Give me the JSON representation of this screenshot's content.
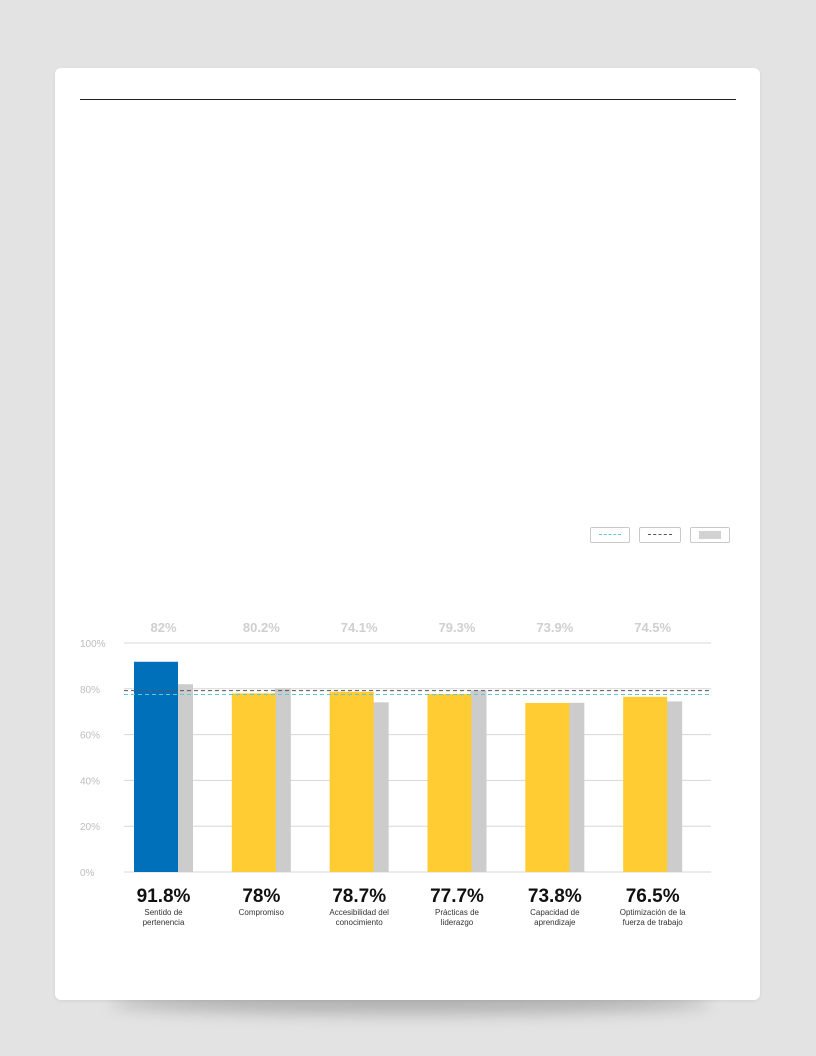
{
  "legend": {
    "items": [
      {
        "label": "",
        "style": "dashed",
        "color": "#5bc8e0"
      },
      {
        "label": "",
        "style": "dashed",
        "color": "#555555"
      },
      {
        "label": "",
        "style": "fill",
        "color": "#d2d2d2"
      }
    ]
  },
  "chart_data": {
    "type": "bar",
    "categories": [
      [
        "Sentido de",
        "pertenencia"
      ],
      [
        "Compromiso"
      ],
      [
        "Accesibilidad del",
        "conocimiento"
      ],
      [
        "Prácticas de",
        "liderazgo"
      ],
      [
        "Capacidad de",
        "aprendizaje"
      ],
      [
        "Optimización de la",
        "fuerza de trabajo"
      ]
    ],
    "series": [
      {
        "values": [
          91.8,
          78,
          78.7,
          77.7,
          73.8,
          76.5
        ],
        "colors": [
          "#0070bb",
          "#ffcc33",
          "#ffcc33",
          "#ffcc33",
          "#ffcc33",
          "#ffcc33"
        ]
      },
      {
        "values": [
          82,
          80.2,
          74.1,
          79.3,
          73.9,
          74.5
        ],
        "color": "#cccccc"
      }
    ],
    "value_labels": [
      "91.8%",
      "78%",
      "78.7%",
      "77.7%",
      "73.8%",
      "76.5%"
    ],
    "comparison_labels": [
      "82%",
      "80.2%",
      "74.1%",
      "79.3%",
      "73.9%",
      "74.5%"
    ],
    "reference_lines": [
      {
        "value": 77.5,
        "color": "#5bc8e0",
        "style": "dashed"
      },
      {
        "value": 79.2,
        "color": "#555555",
        "style": "dashed"
      }
    ],
    "yticks": [
      "0%",
      "20%",
      "40%",
      "60%",
      "80%",
      "100%"
    ],
    "ylim": [
      0,
      100
    ],
    "grid": true,
    "legend_position": "top-right",
    "colors": {
      "primary": "#0070bb",
      "accent": "#ffcc33",
      "comparison": "#cccccc",
      "grid": "#d7d7d7"
    }
  }
}
